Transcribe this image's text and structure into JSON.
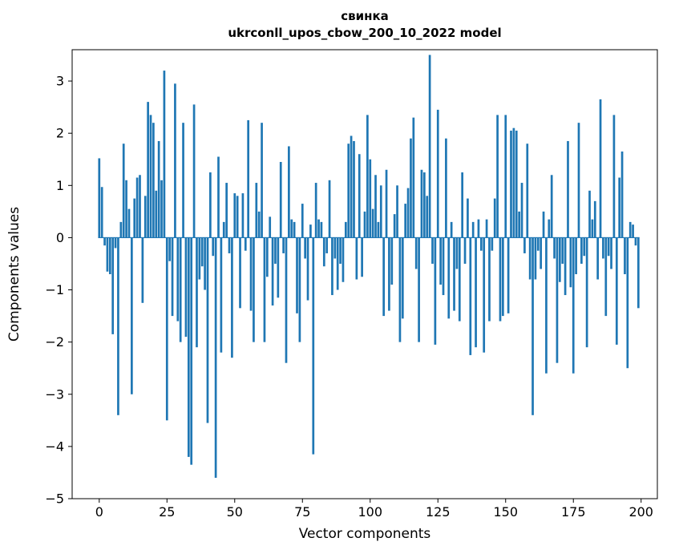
{
  "figure": {
    "title_line1": "свинка",
    "title_line2": "ukrconll_upos_cbow_200_10_2022 model",
    "xlabel": "Vector components",
    "ylabel": "Components values"
  },
  "chart_data": {
    "type": "bar",
    "title": "свинка\nukrconll_upos_cbow_200_10_2022 model",
    "xlabel": "Vector components",
    "ylabel": "Components values",
    "legend": "none",
    "grid": false,
    "bar_color": "#1f77b4",
    "axis_color": "#000000",
    "background": "#ffffff",
    "x_is_index": true,
    "bar_width": 0.8,
    "xlim": [
      -10,
      206
    ],
    "ylim": [
      -5,
      3.6
    ],
    "xticks": [
      0,
      25,
      50,
      75,
      100,
      125,
      150,
      175,
      200
    ],
    "yticks": [
      -5,
      -4,
      -3,
      -2,
      -1,
      0,
      1,
      2,
      3
    ],
    "values": [
      1.52,
      0.97,
      -0.15,
      -0.65,
      -0.7,
      -1.85,
      -0.2,
      -3.4,
      0.3,
      1.8,
      1.1,
      0.55,
      -3.0,
      0.75,
      1.15,
      1.2,
      -1.25,
      0.8,
      2.6,
      2.35,
      2.2,
      0.9,
      1.85,
      1.1,
      3.2,
      -3.5,
      -0.45,
      -1.5,
      2.95,
      -1.6,
      -2.0,
      2.2,
      -1.9,
      -4.2,
      -4.35,
      2.55,
      -2.1,
      -0.8,
      -0.55,
      -1.0,
      -3.55,
      1.25,
      -0.35,
      -4.6,
      1.55,
      -2.2,
      0.3,
      1.05,
      -0.3,
      -2.3,
      0.85,
      0.8,
      -1.35,
      0.85,
      -0.25,
      2.25,
      -1.4,
      -2.0,
      1.05,
      0.5,
      2.2,
      -2.0,
      -0.75,
      0.4,
      -1.3,
      -0.5,
      -1.15,
      1.45,
      -0.3,
      -2.4,
      1.75,
      0.35,
      0.3,
      -1.45,
      -2.0,
      0.65,
      -0.4,
      -1.2,
      0.25,
      -4.15,
      1.05,
      0.35,
      0.3,
      -0.55,
      -0.3,
      1.1,
      -1.1,
      -0.4,
      -1.0,
      -0.5,
      -0.85,
      0.3,
      1.8,
      1.95,
      1.85,
      -0.8,
      1.6,
      -0.75,
      0.5,
      2.35,
      1.5,
      0.55,
      1.2,
      0.3,
      1.0,
      -1.5,
      1.3,
      -1.4,
      -0.9,
      0.45,
      1.0,
      -2.0,
      -1.55,
      0.65,
      0.95,
      1.9,
      2.3,
      -0.6,
      -2.0,
      1.3,
      1.25,
      0.8,
      3.5,
      -0.5,
      -2.05,
      2.45,
      -0.9,
      -1.1,
      1.9,
      -1.55,
      0.3,
      -1.4,
      -0.6,
      -1.6,
      1.25,
      -0.5,
      0.75,
      -2.25,
      0.3,
      -2.1,
      0.35,
      -0.25,
      -2.2,
      0.35,
      -1.6,
      -0.25,
      0.75,
      2.35,
      -1.6,
      -1.5,
      2.35,
      -1.45,
      2.05,
      2.1,
      2.05,
      0.5,
      1.05,
      -0.3,
      1.8,
      -0.8,
      -3.4,
      -0.8,
      -0.25,
      -0.6,
      0.5,
      -2.6,
      0.35,
      1.2,
      -0.4,
      -2.4,
      -0.85,
      -0.5,
      -1.1,
      1.85,
      -0.95,
      -2.6,
      -0.7,
      2.2,
      -0.5,
      -0.35,
      -2.1,
      0.9,
      0.35,
      0.7,
      -0.8,
      2.65,
      -0.4,
      -1.5,
      -0.35,
      -0.6,
      2.35,
      -2.05,
      1.15,
      1.65,
      -0.7,
      -2.5,
      0.3,
      0.25,
      -0.15,
      -1.35
    ]
  }
}
